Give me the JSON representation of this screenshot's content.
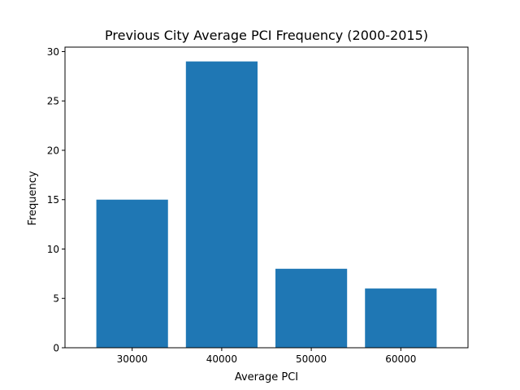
{
  "chart_data": {
    "type": "bar",
    "title": "Previous City Average PCI Frequency (2000-2015)",
    "xlabel": "Average PCI",
    "ylabel": "Frequency",
    "categories": [
      "30000",
      "40000",
      "50000",
      "60000"
    ],
    "x": [
      30000,
      40000,
      50000,
      60000
    ],
    "values": [
      15,
      29,
      8,
      6
    ],
    "xlim": [
      22500,
      67500
    ],
    "ylim": [
      0,
      30.45
    ],
    "x_ticks": [
      30000,
      40000,
      50000,
      60000
    ],
    "y_ticks": [
      0,
      5,
      10,
      15,
      20,
      25,
      30
    ],
    "grid": false,
    "legend": "none",
    "colors": {
      "bar": "#1f77b4",
      "axis": "#000000",
      "background": "#ffffff"
    }
  }
}
